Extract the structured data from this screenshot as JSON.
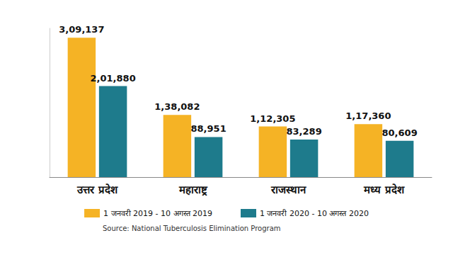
{
  "chart_data": {
    "type": "bar",
    "categories": [
      "उत्तर प्रदेश",
      "महाराष्ट्र",
      "राजस्थान",
      "मध्य प्रदेश"
    ],
    "series": [
      {
        "name": "1 जनवरी 2019 - 10 अगस्त 2019",
        "color": "#f5b325",
        "values": [
          309137,
          138082,
          112305,
          117360
        ],
        "value_labels": [
          "3,09,137",
          "1,38,082",
          "1,12,305",
          "1,17,360"
        ]
      },
      {
        "name": "1 जनवरी 2020 - 10 अगस्त 2020",
        "color": "#1e7b8c",
        "values": [
          201880,
          88951,
          83289,
          80609
        ],
        "value_labels": [
          "2,01,880",
          "88,951",
          "83,289",
          "80,609"
        ]
      }
    ],
    "ylim": [
      0,
      330000
    ],
    "grid": false,
    "legend": "bottom",
    "data_labels": true,
    "tick_labels": "x",
    "source": "Source: National Tuberculosis Elimination Program"
  }
}
